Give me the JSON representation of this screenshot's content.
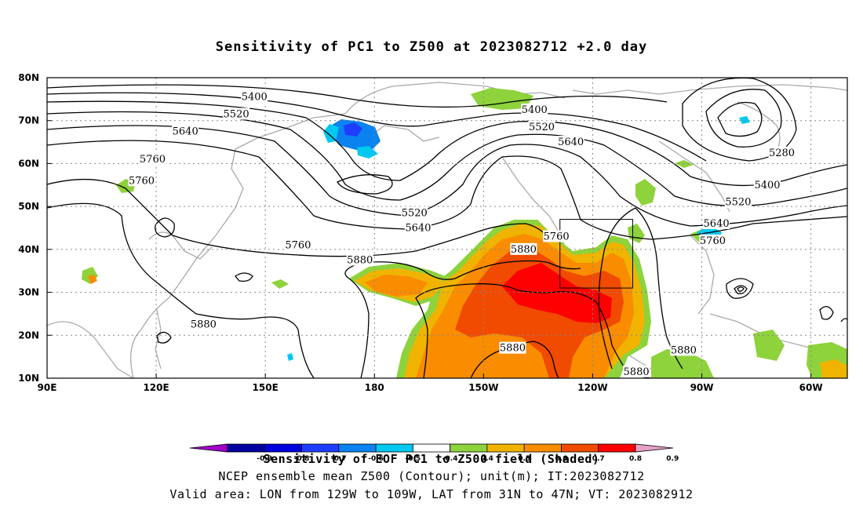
{
  "title": "Sensitivity of PC1 to Z500 at 2023082712 +2.0 day",
  "lat_labels": [
    "80N",
    "70N",
    "60N",
    "50N",
    "40N",
    "30N",
    "20N",
    "10N"
  ],
  "lon_labels": [
    "90E",
    "120E",
    "150E",
    "180",
    "150W",
    "120W",
    "90W",
    "60W"
  ],
  "contour_labels": [
    {
      "text": "5400",
      "lon": 147,
      "lat": 75.5
    },
    {
      "text": "5520",
      "lon": 142,
      "lat": 71.5
    },
    {
      "text": "5640",
      "lon": 128,
      "lat": 67.5
    },
    {
      "text": "5760",
      "lon": 119,
      "lat": 61
    },
    {
      "text": "5760",
      "lon": 116,
      "lat": 56
    },
    {
      "text": "5880",
      "lon": 133,
      "lat": 22.5
    },
    {
      "text": "5880",
      "lon": 176,
      "lat": 37.5
    },
    {
      "text": "5760",
      "lon": 159,
      "lat": 41
    },
    {
      "text": "5640",
      "lon": -168,
      "lat": 45
    },
    {
      "text": "5520",
      "lon": -169,
      "lat": 48.5
    },
    {
      "text": "5880",
      "lon": -139,
      "lat": 40
    },
    {
      "text": "5760",
      "lon": -130,
      "lat": 43
    },
    {
      "text": "5880",
      "lon": -142,
      "lat": 17
    },
    {
      "text": "5880",
      "lon": -108,
      "lat": 11.5
    },
    {
      "text": "5880",
      "lon": -95,
      "lat": 16.5
    },
    {
      "text": "5400",
      "lon": -136,
      "lat": 72.5
    },
    {
      "text": "5520",
      "lon": -134,
      "lat": 68.5
    },
    {
      "text": "5640",
      "lon": -126,
      "lat": 65
    },
    {
      "text": "5280",
      "lon": -68,
      "lat": 62.5
    },
    {
      "text": "5400",
      "lon": -72,
      "lat": 55
    },
    {
      "text": "5520",
      "lon": -80,
      "lat": 51
    },
    {
      "text": "5640",
      "lon": -86,
      "lat": 46
    },
    {
      "text": "5760",
      "lon": -87,
      "lat": 42
    }
  ],
  "valid_box": {
    "lon_min": -129,
    "lon_max": -109,
    "lat_min": 31,
    "lat_max": 47
  },
  "colorbar": {
    "labels": [
      "-0.9",
      "-0.8",
      "-0.7",
      "-0.6",
      "-0.5",
      "-0.4",
      "0.4",
      "0.5",
      "0.6",
      "0.7",
      "0.8",
      "0.9"
    ],
    "colors": [
      "#a000c8",
      "#0000a0",
      "#0000dc",
      "#1e3cff",
      "#0a82f0",
      "#00c8f0",
      "#ffffff",
      "#8ed23c",
      "#f0b400",
      "#fa8c00",
      "#f04b00",
      "#ff0000",
      "#e6a0c8"
    ]
  },
  "caption_line1": "Sensitivity of EOF PC1 to Z500 field (Shaded)",
  "caption_line2": "NCEP ensemble mean Z500 (Contour); unit(m); IT:2023082712",
  "caption_line3": "Valid area: LON from 129W to 109W, LAT from 31N to 47N; VT: 2023082912"
}
